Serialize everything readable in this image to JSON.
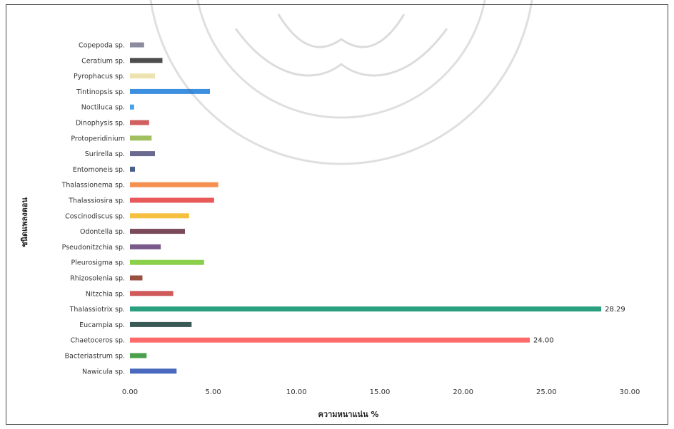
{
  "chart_data": {
    "type": "bar",
    "orientation": "horizontal",
    "categories": [
      "Copepoda sp.",
      "Ceratium sp.",
      "Pyrophacus sp.",
      "Tintinopsis sp.",
      "Noctiluca sp.",
      "Dinophysis sp.",
      "Protoperidinium",
      "Surirella sp.",
      "Entomoneis sp.",
      "Thalassionema sp.",
      "Thalassiosira sp.",
      "Coscinodiscus sp.",
      "Odontella sp.",
      "Pseudonitzchia sp.",
      "Pleurosigma sp.",
      "Rhizosolenia sp.",
      "Nitzchia sp.",
      "Thalassiotrix sp.",
      "Eucampia sp.",
      "Chaetoceros sp.",
      "Bacteriastrum sp.",
      "Nawicula sp."
    ],
    "values": [
      0.85,
      1.95,
      1.5,
      4.8,
      0.25,
      1.15,
      1.3,
      1.5,
      0.3,
      5.3,
      5.05,
      3.55,
      3.3,
      1.85,
      4.45,
      0.75,
      2.6,
      28.29,
      3.7,
      24.0,
      1.0,
      2.8
    ],
    "colors": [
      "#8c8ca0",
      "#4d4d4d",
      "#ece3b0",
      "#3d8fe0",
      "#4aa0e8",
      "#d06060",
      "#a0c060",
      "#6a6a90",
      "#4a5f8a",
      "#f59050",
      "#e85a5a",
      "#f5c040",
      "#7a4a5a",
      "#7a5a8a",
      "#8ad04a",
      "#9a5040",
      "#d05a5a",
      "#2aa080",
      "#3a5a55",
      "#ff6a6a",
      "#4aa04a",
      "#4a6ac0"
    ],
    "data_labels": [
      {
        "index": 17,
        "text": "28.29"
      },
      {
        "index": 19,
        "text": "24.00"
      }
    ],
    "xticks": [
      "0.00",
      "5.00",
      "10.00",
      "15.00",
      "20.00",
      "25.00",
      "30.00"
    ],
    "xlim": [
      0,
      30
    ],
    "xlabel": "ความหนาแน่น %",
    "ylabel": "ชนิดแพลงตอน",
    "title": "",
    "grid": false,
    "legend": "none"
  }
}
